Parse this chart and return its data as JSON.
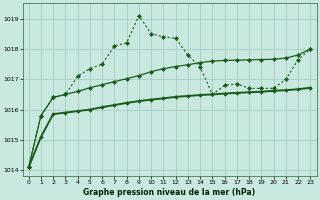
{
  "title": "Graphe pression niveau de la mer (hPa)",
  "background_color": "#c8e8e0",
  "grid_color": "#a0c8c0",
  "line_color": "#1a5c1a",
  "xlim": [
    -0.5,
    23.5
  ],
  "ylim": [
    1013.8,
    1019.5
  ],
  "yticks": [
    1014,
    1015,
    1016,
    1017,
    1018,
    1019
  ],
  "xticks": [
    0,
    1,
    2,
    3,
    4,
    5,
    6,
    7,
    8,
    9,
    10,
    11,
    12,
    13,
    14,
    15,
    16,
    17,
    18,
    19,
    20,
    21,
    22,
    23
  ],
  "series1_x": [
    0,
    1,
    2,
    3,
    4,
    5,
    6,
    7,
    8,
    9,
    10,
    11,
    12,
    13,
    14,
    15,
    16,
    17,
    18,
    19,
    20,
    21,
    22,
    23
  ],
  "series1_y": [
    1014.1,
    1015.8,
    1016.4,
    1016.5,
    1017.1,
    1017.35,
    1017.5,
    1018.1,
    1018.2,
    1019.1,
    1018.5,
    1018.4,
    1018.35,
    1017.8,
    1017.4,
    1016.5,
    1016.8,
    1016.85,
    1016.7,
    1016.7,
    1016.7,
    1017.0,
    1017.65,
    1018.0
  ],
  "series2_x": [
    0,
    1,
    2,
    3,
    4,
    5,
    6,
    7,
    8,
    9,
    10,
    11,
    12,
    13,
    14,
    15,
    16,
    17,
    18,
    19,
    20,
    21,
    22,
    23
  ],
  "series2_y": [
    1014.1,
    1015.8,
    1016.4,
    1016.5,
    1016.6,
    1016.72,
    1016.82,
    1016.92,
    1017.02,
    1017.12,
    1017.25,
    1017.35,
    1017.42,
    1017.48,
    1017.55,
    1017.6,
    1017.62,
    1017.63,
    1017.64,
    1017.65,
    1017.66,
    1017.7,
    1017.8,
    1018.0
  ],
  "series3_x": [
    0,
    1,
    2,
    3,
    4,
    5,
    6,
    7,
    8,
    9,
    10,
    11,
    12,
    13,
    14,
    15,
    16,
    17,
    18,
    19,
    20,
    21,
    22,
    23
  ],
  "series3_y": [
    1014.1,
    1015.1,
    1015.85,
    1015.9,
    1015.95,
    1016.0,
    1016.08,
    1016.15,
    1016.22,
    1016.28,
    1016.33,
    1016.37,
    1016.42,
    1016.45,
    1016.48,
    1016.5,
    1016.53,
    1016.55,
    1016.57,
    1016.59,
    1016.62,
    1016.64,
    1016.67,
    1016.72
  ]
}
